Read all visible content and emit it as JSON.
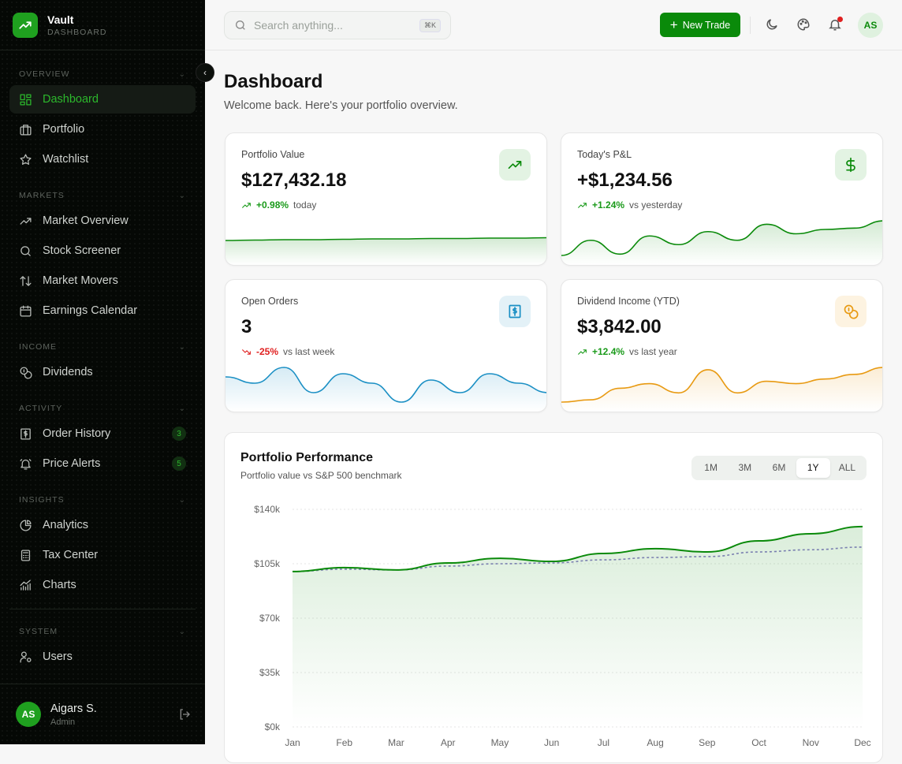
{
  "brand": {
    "name": "Vault",
    "subtitle": "DASHBOARD"
  },
  "sidebar": {
    "sections": [
      {
        "title": "OVERVIEW",
        "items": [
          {
            "label": "Dashboard",
            "icon": "dashboard-icon",
            "active": true
          },
          {
            "label": "Portfolio",
            "icon": "briefcase-icon"
          },
          {
            "label": "Watchlist",
            "icon": "star-icon"
          }
        ]
      },
      {
        "title": "MARKETS",
        "items": [
          {
            "label": "Market Overview",
            "icon": "trending-up-icon"
          },
          {
            "label": "Stock Screener",
            "icon": "search-icon"
          },
          {
            "label": "Market Movers",
            "icon": "arrows-up-down-icon"
          },
          {
            "label": "Earnings Calendar",
            "icon": "calendar-icon"
          }
        ]
      },
      {
        "title": "INCOME",
        "items": [
          {
            "label": "Dividends",
            "icon": "coins-icon"
          }
        ]
      },
      {
        "title": "ACTIVITY",
        "items": [
          {
            "label": "Order History",
            "icon": "receipt-icon",
            "badge": "3"
          },
          {
            "label": "Price Alerts",
            "icon": "bell-ring-icon",
            "badge": "5"
          }
        ]
      },
      {
        "title": "INSIGHTS",
        "items": [
          {
            "label": "Analytics",
            "icon": "pie-chart-icon"
          },
          {
            "label": "Tax Center",
            "icon": "calculator-icon"
          },
          {
            "label": "Charts",
            "icon": "bar-chart-icon"
          }
        ]
      },
      {
        "title": "SYSTEM",
        "items": [
          {
            "label": "Users",
            "icon": "user-cog-icon"
          }
        ]
      }
    ],
    "user": {
      "initials": "AS",
      "name": "Aigars S.",
      "role": "Admin"
    }
  },
  "header": {
    "search_placeholder": "Search anything...",
    "shortcut": "⌘K",
    "new_trade": "New Trade",
    "avatar": "AS"
  },
  "page": {
    "title": "Dashboard",
    "subtitle": "Welcome back. Here's your portfolio overview."
  },
  "colors": {
    "accent": "#0a8a0a",
    "blue": "#1a8fc4",
    "orange": "#e89a12",
    "red": "#e02020"
  },
  "cards": [
    {
      "label": "Portfolio Value",
      "value": "$127,432.18",
      "change": "+0.98%",
      "context": "today",
      "trend": "up",
      "icon": "trending-up-icon",
      "color": "#0a8a0a",
      "icon_bg": "#e3f3e3",
      "sparkline": [
        5,
        5.1,
        5.2,
        5.2,
        5.3,
        5.4,
        5.4,
        5.5,
        5.5,
        5.6,
        5.6,
        5.7
      ]
    },
    {
      "label": "Today's P&L",
      "value": "+$1,234.56",
      "change": "+1.24%",
      "context": "vs yesterday",
      "trend": "up",
      "icon": "dollar-icon",
      "color": "#0a8a0a",
      "icon_bg": "#e3f3e3",
      "sparkline": [
        1,
        4.5,
        1.3,
        5.5,
        3.5,
        6.5,
        4.5,
        8.2,
        6,
        7,
        7.3,
        9
      ]
    },
    {
      "label": "Open Orders",
      "value": "3",
      "change": "-25%",
      "context": "vs last week",
      "trend": "down",
      "icon": "receipt-icon",
      "color": "#1a8fc4",
      "icon_bg": "#e3f1f7",
      "sparkline": [
        6,
        5,
        7.5,
        3.5,
        6.5,
        5,
        2,
        5.5,
        3.5,
        6.5,
        5,
        3.5
      ]
    },
    {
      "label": "Dividend Income (YTD)",
      "value": "$3,842.00",
      "change": "+12.4%",
      "context": "vs last year",
      "trend": "up",
      "icon": "coins-icon",
      "color": "#e89a12",
      "icon_bg": "#fdf3e1",
      "sparkline": [
        0.5,
        1,
        3.5,
        4.5,
        2.5,
        7.5,
        2.5,
        5,
        4.5,
        5.5,
        6.5,
        8
      ]
    }
  ],
  "chart_data": {
    "type": "area",
    "title": "Portfolio Performance",
    "subtitle": "Portfolio value vs S&P 500 benchmark",
    "ranges": [
      "1M",
      "3M",
      "6M",
      "1Y",
      "ALL"
    ],
    "selected_range": "1Y",
    "categories": [
      "Jan",
      "Feb",
      "Mar",
      "Apr",
      "May",
      "Jun",
      "Jul",
      "Aug",
      "Sep",
      "Oct",
      "Nov",
      "Dec"
    ],
    "yticks": [
      "$0k",
      "$35k",
      "$70k",
      "$105k",
      "$140k"
    ],
    "ylim": [
      0,
      140000
    ],
    "grid": true,
    "series": [
      {
        "values": [
          100000,
          102500,
          101000,
          105500,
          108500,
          106500,
          111600,
          114700,
          112600,
          119700,
          124300,
          128900
        ],
        "style": "solid-area",
        "color": "#0a8a0a"
      },
      {
        "values": [
          100000,
          101500,
          101000,
          103500,
          105000,
          105500,
          107500,
          109000,
          109600,
          112600,
          114000,
          115700
        ],
        "style": "dashed",
        "color": "#7a7fb0"
      }
    ]
  }
}
